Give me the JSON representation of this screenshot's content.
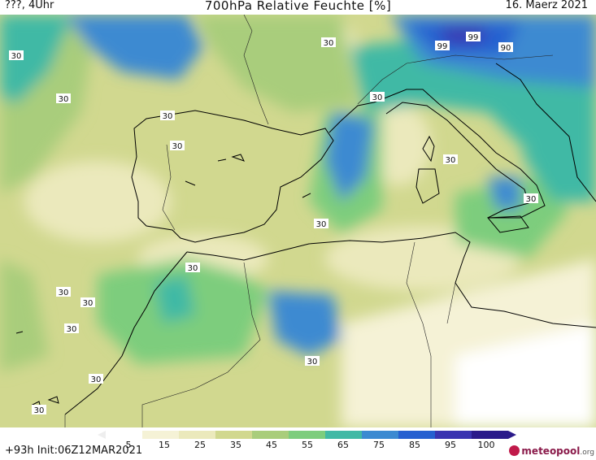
{
  "header": {
    "left": "???, 4Uhr",
    "title": "700hPa Relative Feuchte [%]",
    "right": "16. Maerz 2021"
  },
  "footer": {
    "left": "+93h  Init:06Z12MAR2021",
    "logo_name": "meteopool",
    "logo_tld": ".org",
    "logo_icon": "meteopool-logo-icon"
  },
  "legend": {
    "ticks": [
      "5",
      "15",
      "25",
      "35",
      "45",
      "55",
      "65",
      "75",
      "85",
      "95",
      "100"
    ],
    "colors": [
      "#ffffff",
      "#f5f2d6",
      "#ebe9bc",
      "#d1d88f",
      "#a9cd7b",
      "#7dcd7d",
      "#41b9a5",
      "#3c8ad1",
      "#2660d0",
      "#3a34b0",
      "#2a1a8a"
    ]
  },
  "map": {
    "contour_labels": [
      "30",
      "30",
      "30",
      "30",
      "30",
      "30",
      "30",
      "30",
      "30",
      "30",
      "30",
      "30",
      "30",
      "30",
      "30",
      "30",
      "99",
      "99",
      "90"
    ]
  }
}
